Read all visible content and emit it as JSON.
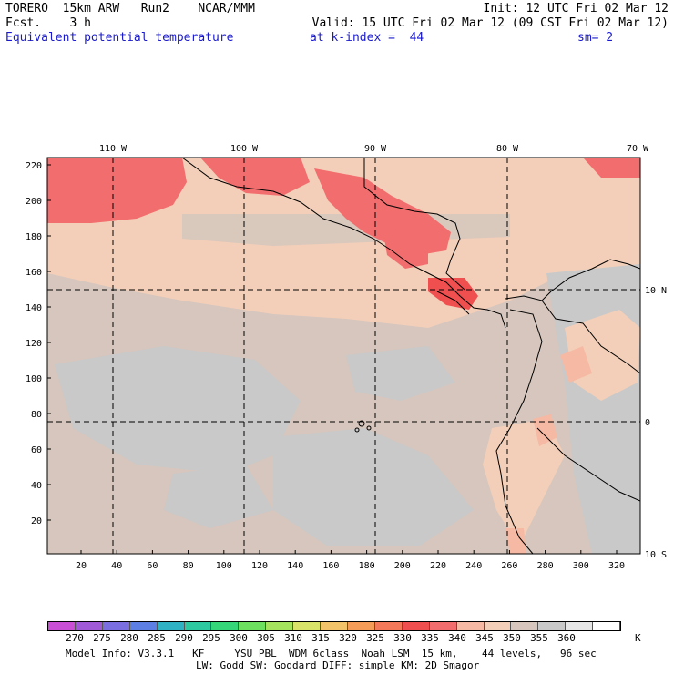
{
  "header": {
    "line1_left": "TORERO  15km ARW   Run2    NCAR/MMM",
    "line1_right": "Init: 12 UTC Fri 02 Mar 12",
    "line2_left": "Fcst.    3 h",
    "line2_right": "Valid: 15 UTC Fri 02 Mar 12 (09 CST Fri 02 Mar 12)",
    "line3_field": "Equivalent potential temperature",
    "line3_level": "at k-index =  44",
    "line3_smooth": "sm= 2"
  },
  "map": {
    "lon_labels": [
      "110 W",
      "100 W",
      "90 W",
      "80 W",
      "70 W"
    ],
    "lat_labels": [
      "10 N",
      "0",
      "10 S"
    ],
    "y_ticks": [
      "220",
      "200",
      "180",
      "160",
      "140",
      "120",
      "100",
      "80",
      "60",
      "40",
      "20"
    ],
    "x_ticks": [
      "20",
      "40",
      "60",
      "80",
      "100",
      "120",
      "140",
      "160",
      "180",
      "200",
      "220",
      "240",
      "260",
      "280",
      "300",
      "320"
    ]
  },
  "colorbar": {
    "unit": "K",
    "labels": [
      "270",
      "275",
      "280",
      "285",
      "290",
      "295",
      "300",
      "305",
      "310",
      "315",
      "320",
      "325",
      "330",
      "335",
      "340",
      "345",
      "350",
      "355",
      "360"
    ],
    "colors": [
      "#c84fd6",
      "#a05ad8",
      "#7a6ee0",
      "#5d7fe3",
      "#2fb2c4",
      "#2dc9a0",
      "#35d67a",
      "#6ee060",
      "#a5e35e",
      "#d9e36a",
      "#f3c36a",
      "#f59c58",
      "#f4795a",
      "#ef4f4f",
      "#f26d6d",
      "#f6b9a3",
      "#f3cfb9",
      "#d6c6bd",
      "#c9c9c9",
      "#e6e6e6",
      "#ffffff"
    ]
  },
  "footer": {
    "line1": "Model Info: V3.3.1   KF     YSU PBL  WDM 6class  Noah LSM  15 km,    44 levels,   96 sec",
    "line2": "LW: Godd SW: Goddard DIFF: simple KM: 2D Smagor"
  }
}
